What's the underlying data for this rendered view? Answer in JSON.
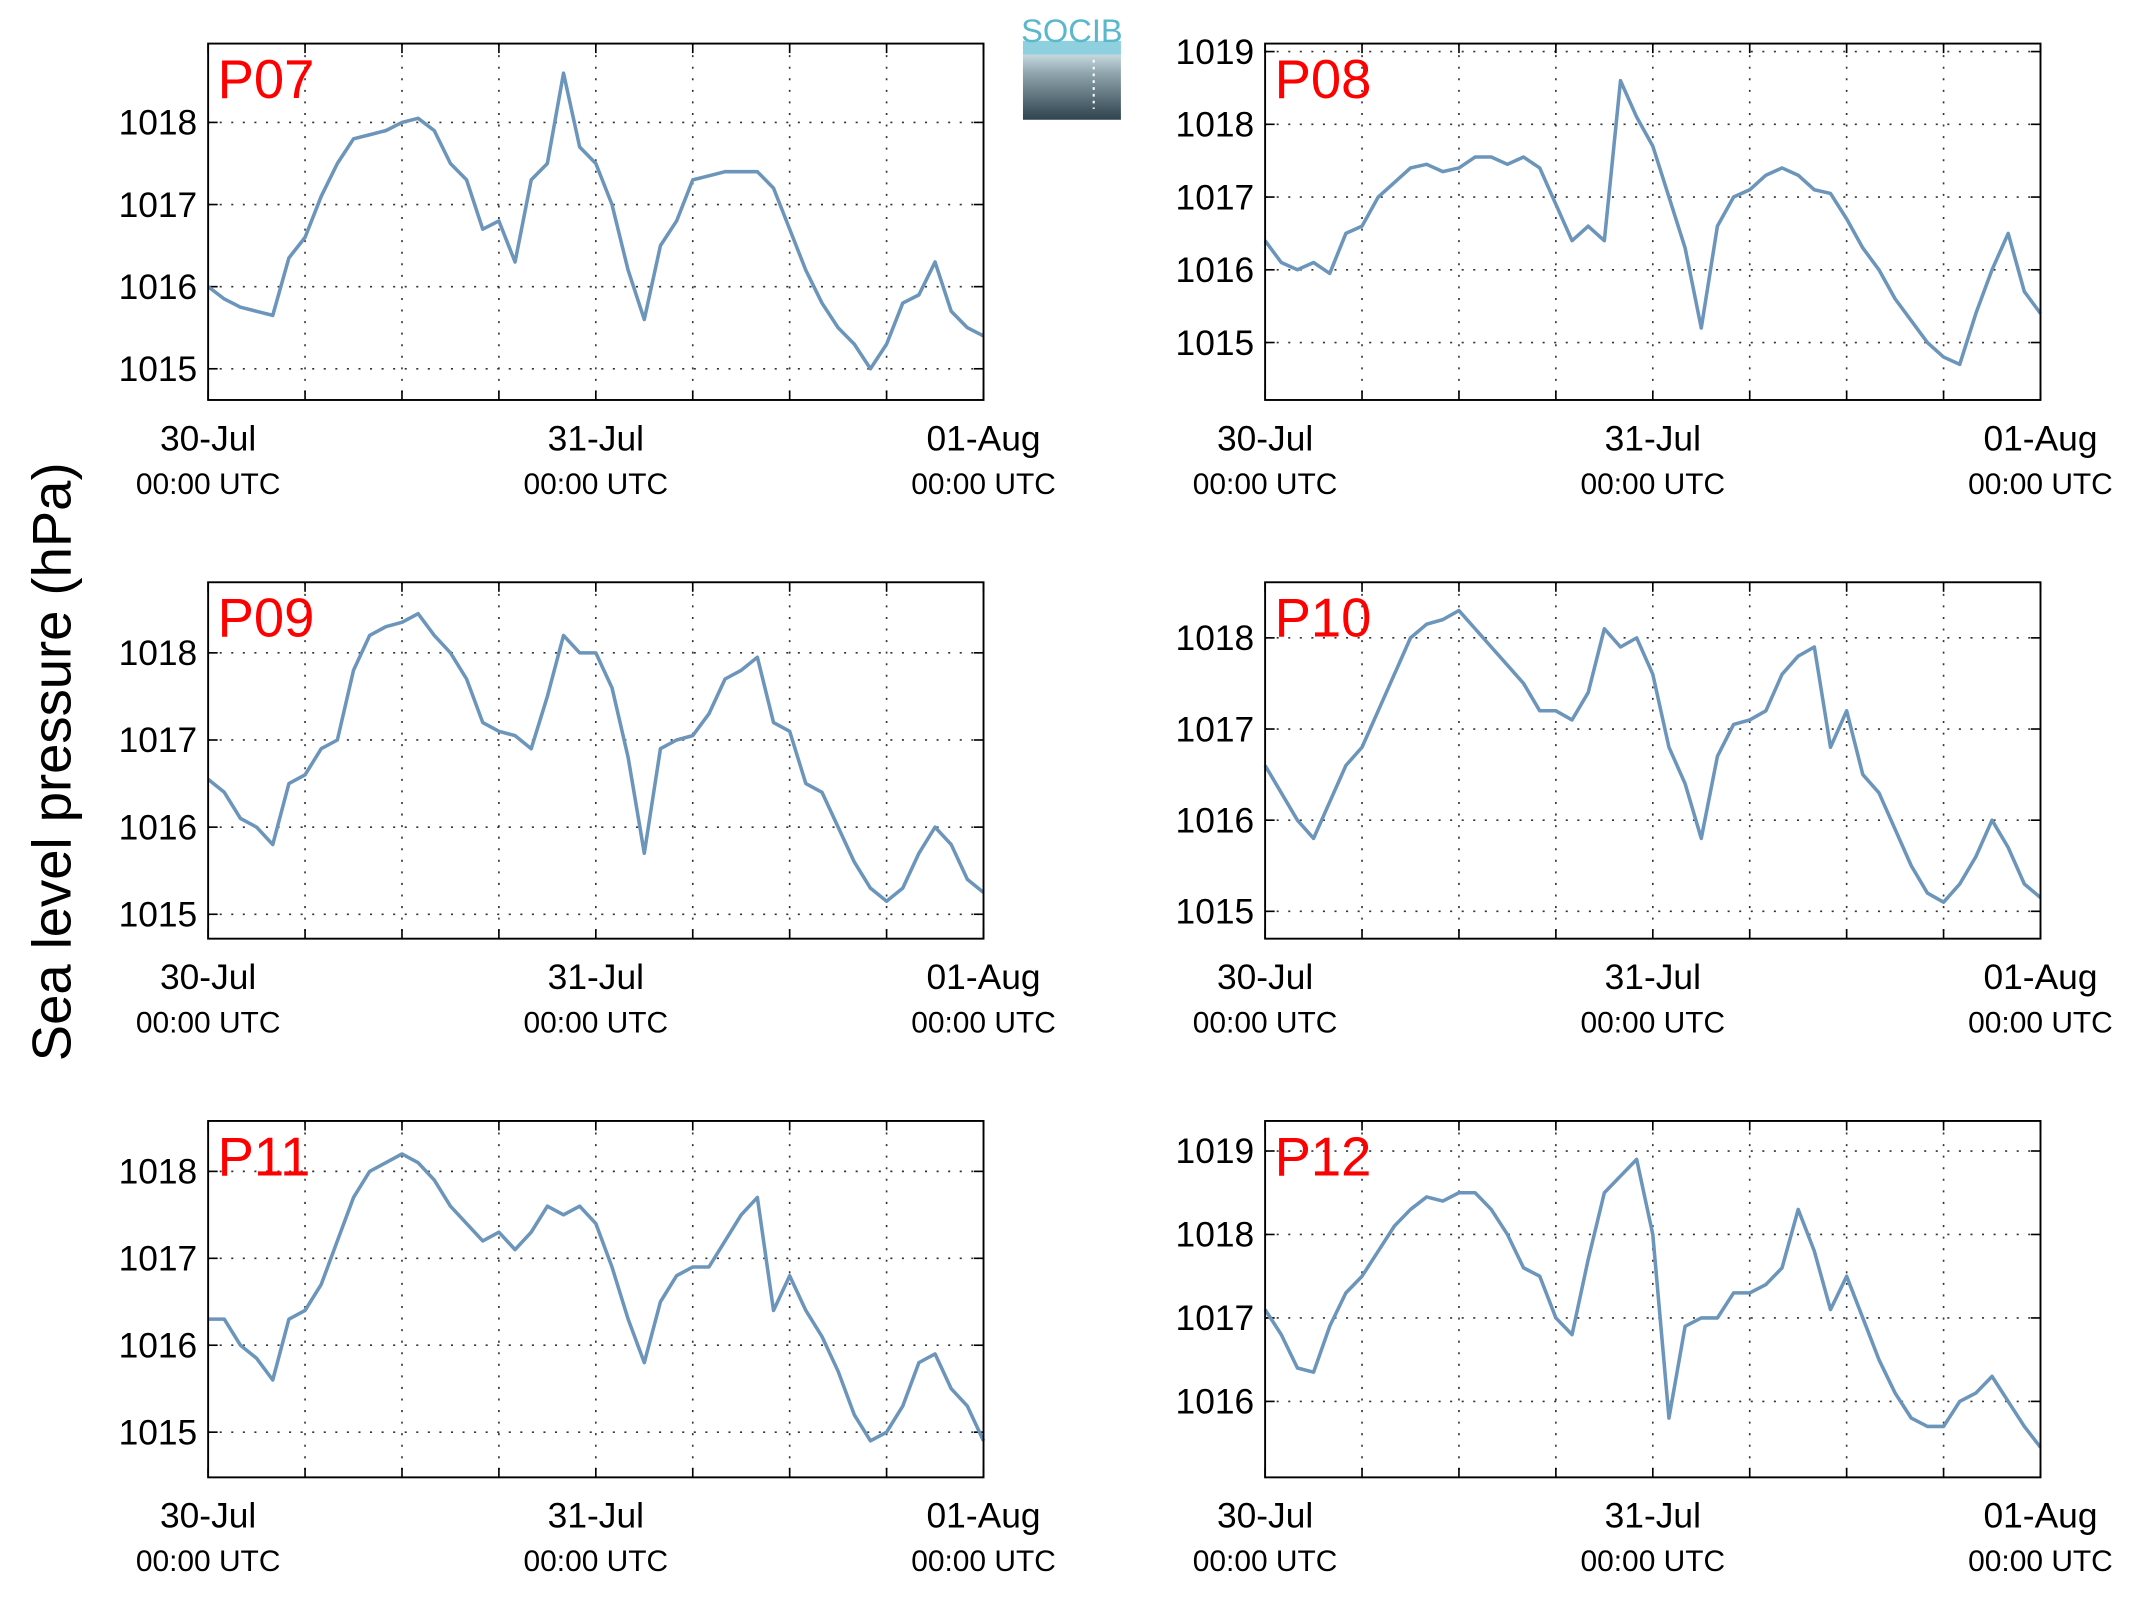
{
  "ylabel": "Sea level pressure (hPa)",
  "logo": "SOCIB",
  "chart_data": [
    {
      "type": "line",
      "title": "P07",
      "color": "#6b95ba",
      "grid": true,
      "x": [
        0,
        1,
        2,
        3,
        4,
        5,
        6,
        7,
        8,
        9,
        10,
        11,
        12,
        13,
        14,
        15,
        16,
        17,
        18,
        19,
        20,
        21,
        22,
        23,
        24,
        25,
        26,
        27,
        28,
        29,
        30,
        31,
        32,
        33,
        34,
        35,
        36,
        37,
        38,
        39,
        40,
        41,
        42,
        43,
        44,
        45,
        46,
        47,
        48
      ],
      "values": [
        1016.0,
        1015.85,
        1015.75,
        1015.7,
        1015.65,
        1016.35,
        1016.6,
        1017.1,
        1017.5,
        1017.8,
        1017.85,
        1017.9,
        1018.0,
        1018.05,
        1017.9,
        1017.5,
        1017.3,
        1016.7,
        1016.8,
        1016.3,
        1017.3,
        1017.5,
        1018.6,
        1017.7,
        1017.5,
        1017.0,
        1016.2,
        1015.6,
        1016.5,
        1016.8,
        1017.3,
        1017.35,
        1017.4,
        1017.4,
        1017.4,
        1017.2,
        1016.7,
        1016.2,
        1015.8,
        1015.5,
        1015.3,
        1015.0,
        1015.3,
        1015.8,
        1015.9,
        1016.3,
        1015.7,
        1015.5,
        1015.4
      ],
      "xlim": [
        0,
        48
      ],
      "ylim": [
        1014.62,
        1018.96
      ],
      "yticks": [
        1015,
        1016,
        1017,
        1018
      ],
      "xticks": [
        {
          "value": 0,
          "label": "30-Jul",
          "sublabel": "00:00 UTC"
        },
        {
          "value": 6,
          "label": null
        },
        {
          "value": 12,
          "label": null
        },
        {
          "value": 18,
          "label": null
        },
        {
          "value": 24,
          "label": "31-Jul",
          "sublabel": "00:00 UTC"
        },
        {
          "value": 30,
          "label": null
        },
        {
          "value": 36,
          "label": null
        },
        {
          "value": 42,
          "label": null
        },
        {
          "value": 48,
          "label": "01-Aug",
          "sublabel": "00:00 UTC"
        }
      ]
    },
    {
      "type": "line",
      "title": "P08",
      "color": "#6b95ba",
      "grid": true,
      "x": [
        0,
        1,
        2,
        3,
        4,
        5,
        6,
        7,
        8,
        9,
        10,
        11,
        12,
        13,
        14,
        15,
        16,
        17,
        18,
        19,
        20,
        21,
        22,
        23,
        24,
        25,
        26,
        27,
        28,
        29,
        30,
        31,
        32,
        33,
        34,
        35,
        36,
        37,
        38,
        39,
        40,
        41,
        42,
        43,
        44,
        45,
        46,
        47,
        48
      ],
      "values": [
        1016.4,
        1016.1,
        1016.0,
        1016.1,
        1015.95,
        1016.5,
        1016.6,
        1017.0,
        1017.2,
        1017.4,
        1017.45,
        1017.35,
        1017.4,
        1017.55,
        1017.55,
        1017.45,
        1017.55,
        1017.4,
        1016.9,
        1016.4,
        1016.6,
        1016.4,
        1018.6,
        1018.1,
        1017.7,
        1017.0,
        1016.3,
        1015.2,
        1016.6,
        1017.0,
        1017.1,
        1017.3,
        1017.4,
        1017.3,
        1017.1,
        1017.05,
        1016.7,
        1016.3,
        1016.0,
        1015.6,
        1015.3,
        1015.0,
        1014.8,
        1014.7,
        1015.4,
        1016.0,
        1016.5,
        1015.7,
        1015.4
      ],
      "xlim": [
        0,
        48
      ],
      "ylim": [
        1014.21,
        1019.11
      ],
      "yticks": [
        1015,
        1016,
        1017,
        1018,
        1019
      ],
      "xticks": [
        {
          "value": 0,
          "label": "30-Jul",
          "sublabel": "00:00 UTC"
        },
        {
          "value": 6,
          "label": null
        },
        {
          "value": 12,
          "label": null
        },
        {
          "value": 18,
          "label": null
        },
        {
          "value": 24,
          "label": "31-Jul",
          "sublabel": "00:00 UTC"
        },
        {
          "value": 30,
          "label": null
        },
        {
          "value": 36,
          "label": null
        },
        {
          "value": 42,
          "label": null
        },
        {
          "value": 48,
          "label": "01-Aug",
          "sublabel": "00:00 UTC"
        }
      ]
    },
    {
      "type": "line",
      "title": "P09",
      "color": "#6b95ba",
      "grid": true,
      "x": [
        0,
        1,
        2,
        3,
        4,
        5,
        6,
        7,
        8,
        9,
        10,
        11,
        12,
        13,
        14,
        15,
        16,
        17,
        18,
        19,
        20,
        21,
        22,
        23,
        24,
        25,
        26,
        27,
        28,
        29,
        30,
        31,
        32,
        33,
        34,
        35,
        36,
        37,
        38,
        39,
        40,
        41,
        42,
        43,
        44,
        45,
        46,
        47,
        48
      ],
      "values": [
        1016.55,
        1016.4,
        1016.1,
        1016.0,
        1015.8,
        1016.5,
        1016.6,
        1016.9,
        1017.0,
        1017.8,
        1018.2,
        1018.3,
        1018.35,
        1018.45,
        1018.2,
        1018.0,
        1017.7,
        1017.2,
        1017.1,
        1017.05,
        1016.9,
        1017.5,
        1018.2,
        1018.0,
        1018.0,
        1017.6,
        1016.8,
        1015.7,
        1016.9,
        1017.0,
        1017.05,
        1017.3,
        1017.7,
        1017.8,
        1017.95,
        1017.2,
        1017.1,
        1016.5,
        1016.4,
        1016.0,
        1015.6,
        1015.3,
        1015.15,
        1015.3,
        1015.7,
        1016.0,
        1015.8,
        1015.4,
        1015.25
      ],
      "xlim": [
        0,
        48
      ],
      "ylim": [
        1014.72,
        1018.81
      ],
      "yticks": [
        1015,
        1016,
        1017,
        1018
      ],
      "xticks": [
        {
          "value": 0,
          "label": "30-Jul",
          "sublabel": "00:00 UTC"
        },
        {
          "value": 6,
          "label": null
        },
        {
          "value": 12,
          "label": null
        },
        {
          "value": 18,
          "label": null
        },
        {
          "value": 24,
          "label": "31-Jul",
          "sublabel": "00:00 UTC"
        },
        {
          "value": 30,
          "label": null
        },
        {
          "value": 36,
          "label": null
        },
        {
          "value": 42,
          "label": null
        },
        {
          "value": 48,
          "label": "01-Aug",
          "sublabel": "00:00 UTC"
        }
      ]
    },
    {
      "type": "line",
      "title": "P10",
      "color": "#6b95ba",
      "grid": true,
      "x": [
        0,
        1,
        2,
        3,
        4,
        5,
        6,
        7,
        8,
        9,
        10,
        11,
        12,
        13,
        14,
        15,
        16,
        17,
        18,
        19,
        20,
        21,
        22,
        23,
        24,
        25,
        26,
        27,
        28,
        29,
        30,
        31,
        32,
        33,
        34,
        35,
        36,
        37,
        38,
        39,
        40,
        41,
        42,
        43,
        44,
        45,
        46,
        47,
        48
      ],
      "values": [
        1016.6,
        1016.3,
        1016.0,
        1015.8,
        1016.2,
        1016.6,
        1016.8,
        1017.2,
        1017.6,
        1018.0,
        1018.15,
        1018.2,
        1018.3,
        1018.1,
        1017.9,
        1017.7,
        1017.5,
        1017.2,
        1017.2,
        1017.1,
        1017.4,
        1018.1,
        1017.9,
        1018.0,
        1017.6,
        1016.8,
        1016.4,
        1015.8,
        1016.7,
        1017.05,
        1017.1,
        1017.2,
        1017.6,
        1017.8,
        1017.9,
        1016.8,
        1017.2,
        1016.5,
        1016.3,
        1015.9,
        1015.5,
        1015.2,
        1015.1,
        1015.3,
        1015.6,
        1016.0,
        1015.7,
        1015.3,
        1015.15
      ],
      "xlim": [
        0,
        48
      ],
      "ylim": [
        1014.7,
        1018.61
      ],
      "yticks": [
        1015,
        1016,
        1017,
        1018
      ],
      "xticks": [
        {
          "value": 0,
          "label": "30-Jul",
          "sublabel": "00:00 UTC"
        },
        {
          "value": 6,
          "label": null
        },
        {
          "value": 12,
          "label": null
        },
        {
          "value": 18,
          "label": null
        },
        {
          "value": 24,
          "label": "31-Jul",
          "sublabel": "00:00 UTC"
        },
        {
          "value": 30,
          "label": null
        },
        {
          "value": 36,
          "label": null
        },
        {
          "value": 42,
          "label": null
        },
        {
          "value": 48,
          "label": "01-Aug",
          "sublabel": "00:00 UTC"
        }
      ]
    },
    {
      "type": "line",
      "title": "P11",
      "color": "#6b95ba",
      "grid": true,
      "x": [
        0,
        1,
        2,
        3,
        4,
        5,
        6,
        7,
        8,
        9,
        10,
        11,
        12,
        13,
        14,
        15,
        16,
        17,
        18,
        19,
        20,
        21,
        22,
        23,
        24,
        25,
        26,
        27,
        28,
        29,
        30,
        31,
        32,
        33,
        34,
        35,
        36,
        37,
        38,
        39,
        40,
        41,
        42,
        43,
        44,
        45,
        46,
        47,
        48
      ],
      "values": [
        1016.3,
        1016.3,
        1016.0,
        1015.85,
        1015.6,
        1016.3,
        1016.4,
        1016.7,
        1017.2,
        1017.7,
        1018.0,
        1018.1,
        1018.2,
        1018.1,
        1017.9,
        1017.6,
        1017.4,
        1017.2,
        1017.3,
        1017.1,
        1017.3,
        1017.6,
        1017.5,
        1017.6,
        1017.4,
        1016.9,
        1016.3,
        1015.8,
        1016.5,
        1016.8,
        1016.9,
        1016.9,
        1017.2,
        1017.5,
        1017.7,
        1016.4,
        1016.8,
        1016.4,
        1016.1,
        1015.7,
        1015.2,
        1014.9,
        1015.0,
        1015.3,
        1015.8,
        1015.9,
        1015.5,
        1015.3,
        1014.9
      ],
      "xlim": [
        0,
        48
      ],
      "ylim": [
        1014.48,
        1018.58
      ],
      "yticks": [
        1015,
        1016,
        1017,
        1018
      ],
      "xticks": [
        {
          "value": 0,
          "label": "30-Jul",
          "sublabel": "00:00 UTC"
        },
        {
          "value": 6,
          "label": null
        },
        {
          "value": 12,
          "label": null
        },
        {
          "value": 18,
          "label": null
        },
        {
          "value": 24,
          "label": "31-Jul",
          "sublabel": "00:00 UTC"
        },
        {
          "value": 30,
          "label": null
        },
        {
          "value": 36,
          "label": null
        },
        {
          "value": 42,
          "label": null
        },
        {
          "value": 48,
          "label": "01-Aug",
          "sublabel": "00:00 UTC"
        }
      ]
    },
    {
      "type": "line",
      "title": "P12",
      "color": "#6b95ba",
      "grid": true,
      "x": [
        0,
        1,
        2,
        3,
        4,
        5,
        6,
        7,
        8,
        9,
        10,
        11,
        12,
        13,
        14,
        15,
        16,
        17,
        18,
        19,
        20,
        21,
        22,
        23,
        24,
        25,
        26,
        27,
        28,
        29,
        30,
        31,
        32,
        33,
        34,
        35,
        36,
        37,
        38,
        39,
        40,
        41,
        42,
        43,
        44,
        45,
        46,
        47,
        48
      ],
      "values": [
        1017.1,
        1016.8,
        1016.4,
        1016.35,
        1016.9,
        1017.3,
        1017.5,
        1017.8,
        1018.1,
        1018.3,
        1018.45,
        1018.4,
        1018.5,
        1018.5,
        1018.3,
        1018.0,
        1017.6,
        1017.5,
        1017.0,
        1016.8,
        1017.7,
        1018.5,
        1018.7,
        1018.9,
        1018.0,
        1015.8,
        1016.9,
        1017.0,
        1017.0,
        1017.3,
        1017.3,
        1017.4,
        1017.6,
        1018.3,
        1017.8,
        1017.1,
        1017.5,
        1017.0,
        1016.5,
        1016.1,
        1015.8,
        1015.7,
        1015.7,
        1016.0,
        1016.1,
        1016.3,
        1016.0,
        1015.7,
        1015.45
      ],
      "xlim": [
        0,
        48
      ],
      "ylim": [
        1015.09,
        1019.36
      ],
      "yticks": [
        1016,
        1017,
        1018,
        1019
      ],
      "xticks": [
        {
          "value": 0,
          "label": "30-Jul",
          "sublabel": "00:00 UTC"
        },
        {
          "value": 6,
          "label": null
        },
        {
          "value": 12,
          "label": null
        },
        {
          "value": 18,
          "label": null
        },
        {
          "value": 24,
          "label": "31-Jul",
          "sublabel": "00:00 UTC"
        },
        {
          "value": 30,
          "label": null
        },
        {
          "value": 36,
          "label": null
        },
        {
          "value": 42,
          "label": null
        },
        {
          "value": 48,
          "label": "01-Aug",
          "sublabel": "00:00 UTC"
        }
      ]
    }
  ]
}
